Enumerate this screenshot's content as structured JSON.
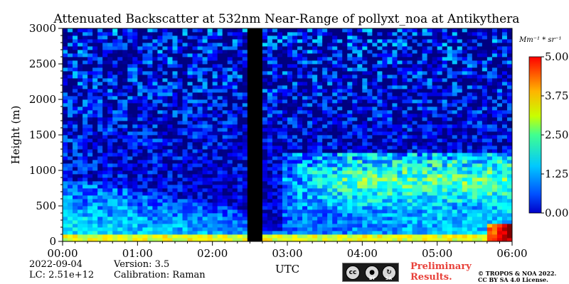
{
  "chart_data": {
    "type": "heatmap",
    "title": "Attenuated Backscatter at 532nm Near-Range of pollyxt_noa at Antikythera",
    "xlabel": "UTC",
    "ylabel": "Height (m)",
    "x_ticks": [
      "00:00",
      "01:00",
      "02:00",
      "03:00",
      "04:00",
      "05:00",
      "06:00"
    ],
    "x_range": [
      "00:00",
      "06:00"
    ],
    "y_ticks": [
      0,
      500,
      1000,
      1500,
      2000,
      2500,
      3000
    ],
    "y_range": [
      0,
      3000
    ],
    "colorbar": {
      "unit": "Mm⁻¹ * sr⁻¹",
      "ticks": [
        "0.00",
        "1.25",
        "2.50",
        "3.75",
        "5.00"
      ],
      "range": [
        0,
        5
      ],
      "colormap": "jet"
    },
    "no_data_interval": [
      "02:30",
      "02:41"
    ],
    "features": [
      {
        "label": "surface aerosol layer",
        "x_range": [
          "00:00",
          "06:00"
        ],
        "y_range": [
          0,
          120
        ],
        "approx_value": 3.2
      },
      {
        "label": "aerosol layer",
        "x_range": [
          "03:00",
          "06:00"
        ],
        "y_range": [
          500,
          1200
        ],
        "approx_value": 2.2
      },
      {
        "label": "strong near-surface signal",
        "x_range": [
          "05:40",
          "06:00"
        ],
        "y_range": [
          0,
          250
        ],
        "approx_value": 5.0
      }
    ]
  },
  "footer": {
    "date": "2022-09-04",
    "lc": "LC: 2.51e+12",
    "version": "Version: 3.5",
    "calibration": "Calibration: Raman",
    "badge_cc": "cc",
    "badge_by": "BY",
    "badge_sa": "SA",
    "preliminary_line1": "Preliminary",
    "preliminary_line2": "Results.",
    "copyright_line1": "© TROPOS & NOA 2022.",
    "copyright_line2": "CC BY SA 4.0 License."
  }
}
